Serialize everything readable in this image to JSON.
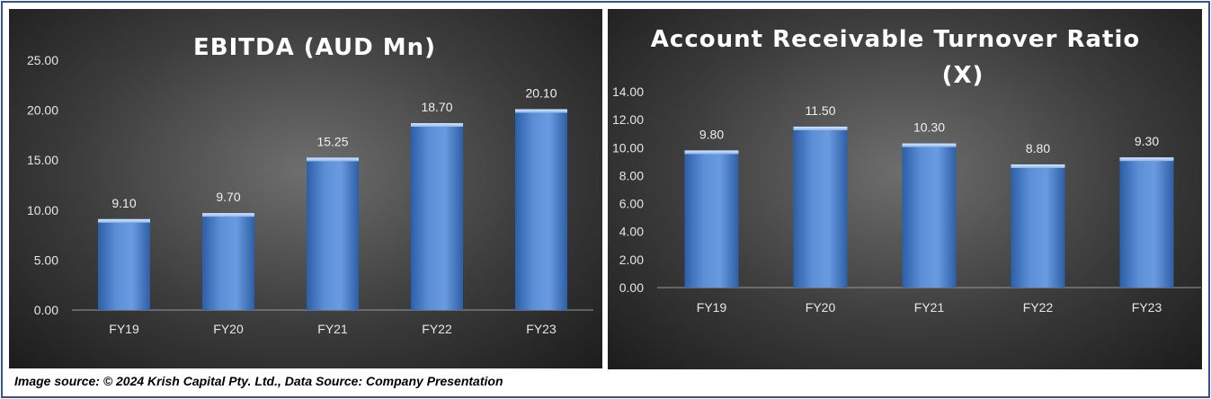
{
  "colors": {
    "bar_light": "#9dc3ee",
    "bar_mid": "#5b8fd6",
    "bar_dark": "#2d5fa8",
    "frame_border": "#2f5597"
  },
  "chart_data": [
    {
      "type": "bar",
      "title": "EBITDA (AUD Mn)",
      "categories": [
        "FY19",
        "FY20",
        "FY21",
        "FY22",
        "FY23"
      ],
      "values": [
        9.1,
        9.7,
        15.25,
        18.7,
        20.1
      ],
      "value_labels": [
        "9.10",
        "9.70",
        "15.25",
        "18.70",
        "20.10"
      ],
      "ylim": [
        0,
        25
      ],
      "yticks": [
        "0.00",
        "5.00",
        "10.00",
        "15.00",
        "20.00",
        "25.00"
      ],
      "grid": false,
      "legend": "none"
    },
    {
      "type": "bar",
      "title_lines": [
        "Account Receivable Turnover Ratio",
        "(X)"
      ],
      "categories": [
        "FY19",
        "FY20",
        "FY21",
        "FY22",
        "FY23"
      ],
      "values": [
        9.8,
        11.5,
        10.3,
        8.8,
        9.3
      ],
      "value_labels": [
        "9.80",
        "11.50",
        "10.30",
        "8.80",
        "9.30"
      ],
      "ylim": [
        0,
        14
      ],
      "yticks": [
        "0.00",
        "2.00",
        "4.00",
        "6.00",
        "8.00",
        "10.00",
        "12.00",
        "14.00"
      ],
      "grid": false,
      "legend": "none"
    }
  ],
  "caption": "Image source: © 2024 Krish Capital Pty. Ltd., Data Source: Company Presentation"
}
